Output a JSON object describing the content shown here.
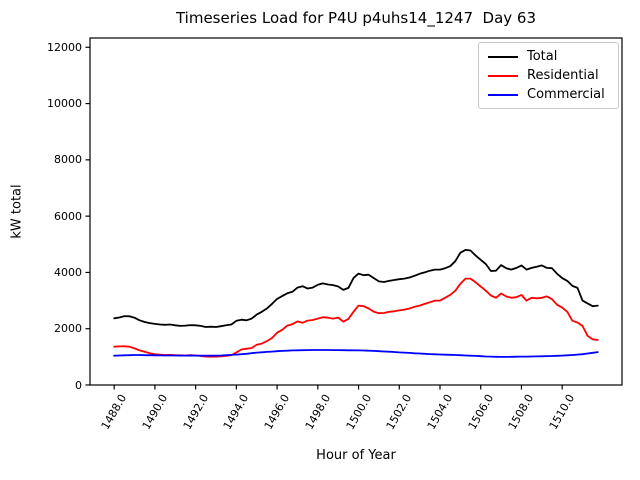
{
  "figure": {
    "title": "Timeseries Load for P4U p4uhs14_1247  Day 63",
    "xlabel": "Hour of Year",
    "ylabel": "kW total"
  },
  "legend": {
    "position": "upper right",
    "items": [
      {
        "label": "Total",
        "color": "#000000"
      },
      {
        "label": "Residential",
        "color": "#ff0000"
      },
      {
        "label": "Commercial",
        "color": "#0000ff"
      }
    ]
  },
  "chart_data": {
    "type": "line",
    "title": "Timeseries Load for P4U p4uhs14_1247  Day 63",
    "xlabel": "Hour of Year",
    "ylabel": "kW total",
    "grid": false,
    "legend_position": "upper right",
    "x_start": 1488.0,
    "x_step": 0.25,
    "n_points": 96,
    "xlim": [
      1486.8125,
      1512.9375
    ],
    "ylim": [
      0,
      12330
    ],
    "x_ticks": [
      1488,
      1490,
      1492,
      1494,
      1496,
      1498,
      1500,
      1502,
      1504,
      1506,
      1508,
      1510
    ],
    "x_tick_labels": [
      "1488.0",
      "1490.0",
      "1492.0",
      "1494.0",
      "1496.0",
      "1498.0",
      "1500.0",
      "1502.0",
      "1504.0",
      "1506.0",
      "1508.0",
      "1510.0"
    ],
    "y_ticks": [
      0,
      2000,
      4000,
      6000,
      8000,
      10000,
      12000
    ],
    "y_tick_labels": [
      "0",
      "2000",
      "4000",
      "6000",
      "8000",
      "10000",
      "12000"
    ],
    "series": [
      {
        "name": "Total",
        "color": "#000000",
        "values": [
          2370,
          2400,
          2450,
          2440,
          2390,
          2300,
          2240,
          2200,
          2170,
          2150,
          2140,
          2150,
          2120,
          2100,
          2110,
          2130,
          2120,
          2100,
          2060,
          2070,
          2060,
          2090,
          2120,
          2150,
          2280,
          2320,
          2300,
          2360,
          2500,
          2600,
          2720,
          2880,
          3060,
          3160,
          3260,
          3310,
          3460,
          3510,
          3430,
          3460,
          3560,
          3610,
          3570,
          3550,
          3500,
          3380,
          3450,
          3800,
          3960,
          3900,
          3920,
          3800,
          3680,
          3660,
          3700,
          3730,
          3760,
          3780,
          3820,
          3880,
          3950,
          4000,
          4060,
          4100,
          4100,
          4150,
          4220,
          4400,
          4700,
          4800,
          4780,
          4600,
          4450,
          4300,
          4050,
          4060,
          4260,
          4150,
          4100,
          4160,
          4250,
          4100,
          4160,
          4200,
          4250,
          4160,
          4150,
          3950,
          3800,
          3700,
          3520,
          3450,
          3000,
          2900,
          2800,
          2820
        ]
      },
      {
        "name": "Residential",
        "color": "#ff0000",
        "values": [
          1360,
          1370,
          1375,
          1360,
          1300,
          1230,
          1180,
          1130,
          1090,
          1075,
          1065,
          1070,
          1060,
          1055,
          1050,
          1060,
          1050,
          1035,
          1010,
          1008,
          1005,
          1020,
          1035,
          1060,
          1160,
          1260,
          1290,
          1310,
          1430,
          1470,
          1560,
          1670,
          1860,
          1960,
          2110,
          2160,
          2260,
          2210,
          2290,
          2310,
          2360,
          2410,
          2390,
          2360,
          2400,
          2250,
          2350,
          2600,
          2820,
          2800,
          2720,
          2600,
          2550,
          2560,
          2600,
          2620,
          2650,
          2680,
          2720,
          2780,
          2820,
          2880,
          2940,
          3000,
          3000,
          3100,
          3200,
          3350,
          3600,
          3780,
          3780,
          3650,
          3500,
          3350,
          3180,
          3100,
          3250,
          3150,
          3100,
          3120,
          3200,
          3000,
          3100,
          3080,
          3100,
          3150,
          3050,
          2850,
          2750,
          2600,
          2280,
          2220,
          2100,
          1750,
          1620,
          1600
        ]
      },
      {
        "name": "Commercial",
        "color": "#0000ff",
        "values": [
          1040,
          1050,
          1055,
          1060,
          1065,
          1065,
          1060,
          1058,
          1055,
          1052,
          1050,
          1050,
          1048,
          1045,
          1045,
          1048,
          1045,
          1042,
          1040,
          1042,
          1045,
          1050,
          1058,
          1068,
          1080,
          1095,
          1110,
          1130,
          1150,
          1162,
          1175,
          1188,
          1200,
          1210,
          1220,
          1228,
          1232,
          1236,
          1240,
          1242,
          1245,
          1245,
          1242,
          1240,
          1240,
          1236,
          1234,
          1232,
          1230,
          1226,
          1220,
          1212,
          1202,
          1192,
          1182,
          1172,
          1160,
          1150,
          1140,
          1128,
          1118,
          1108,
          1098,
          1090,
          1084,
          1078,
          1072,
          1066,
          1058,
          1050,
          1042,
          1034,
          1022,
          1014,
          1008,
          1002,
          1000,
          1000,
          1002,
          1004,
          1008,
          1010,
          1014,
          1016,
          1020,
          1026,
          1032,
          1038,
          1046,
          1056,
          1066,
          1080,
          1096,
          1118,
          1145,
          1170
        ]
      }
    ]
  }
}
